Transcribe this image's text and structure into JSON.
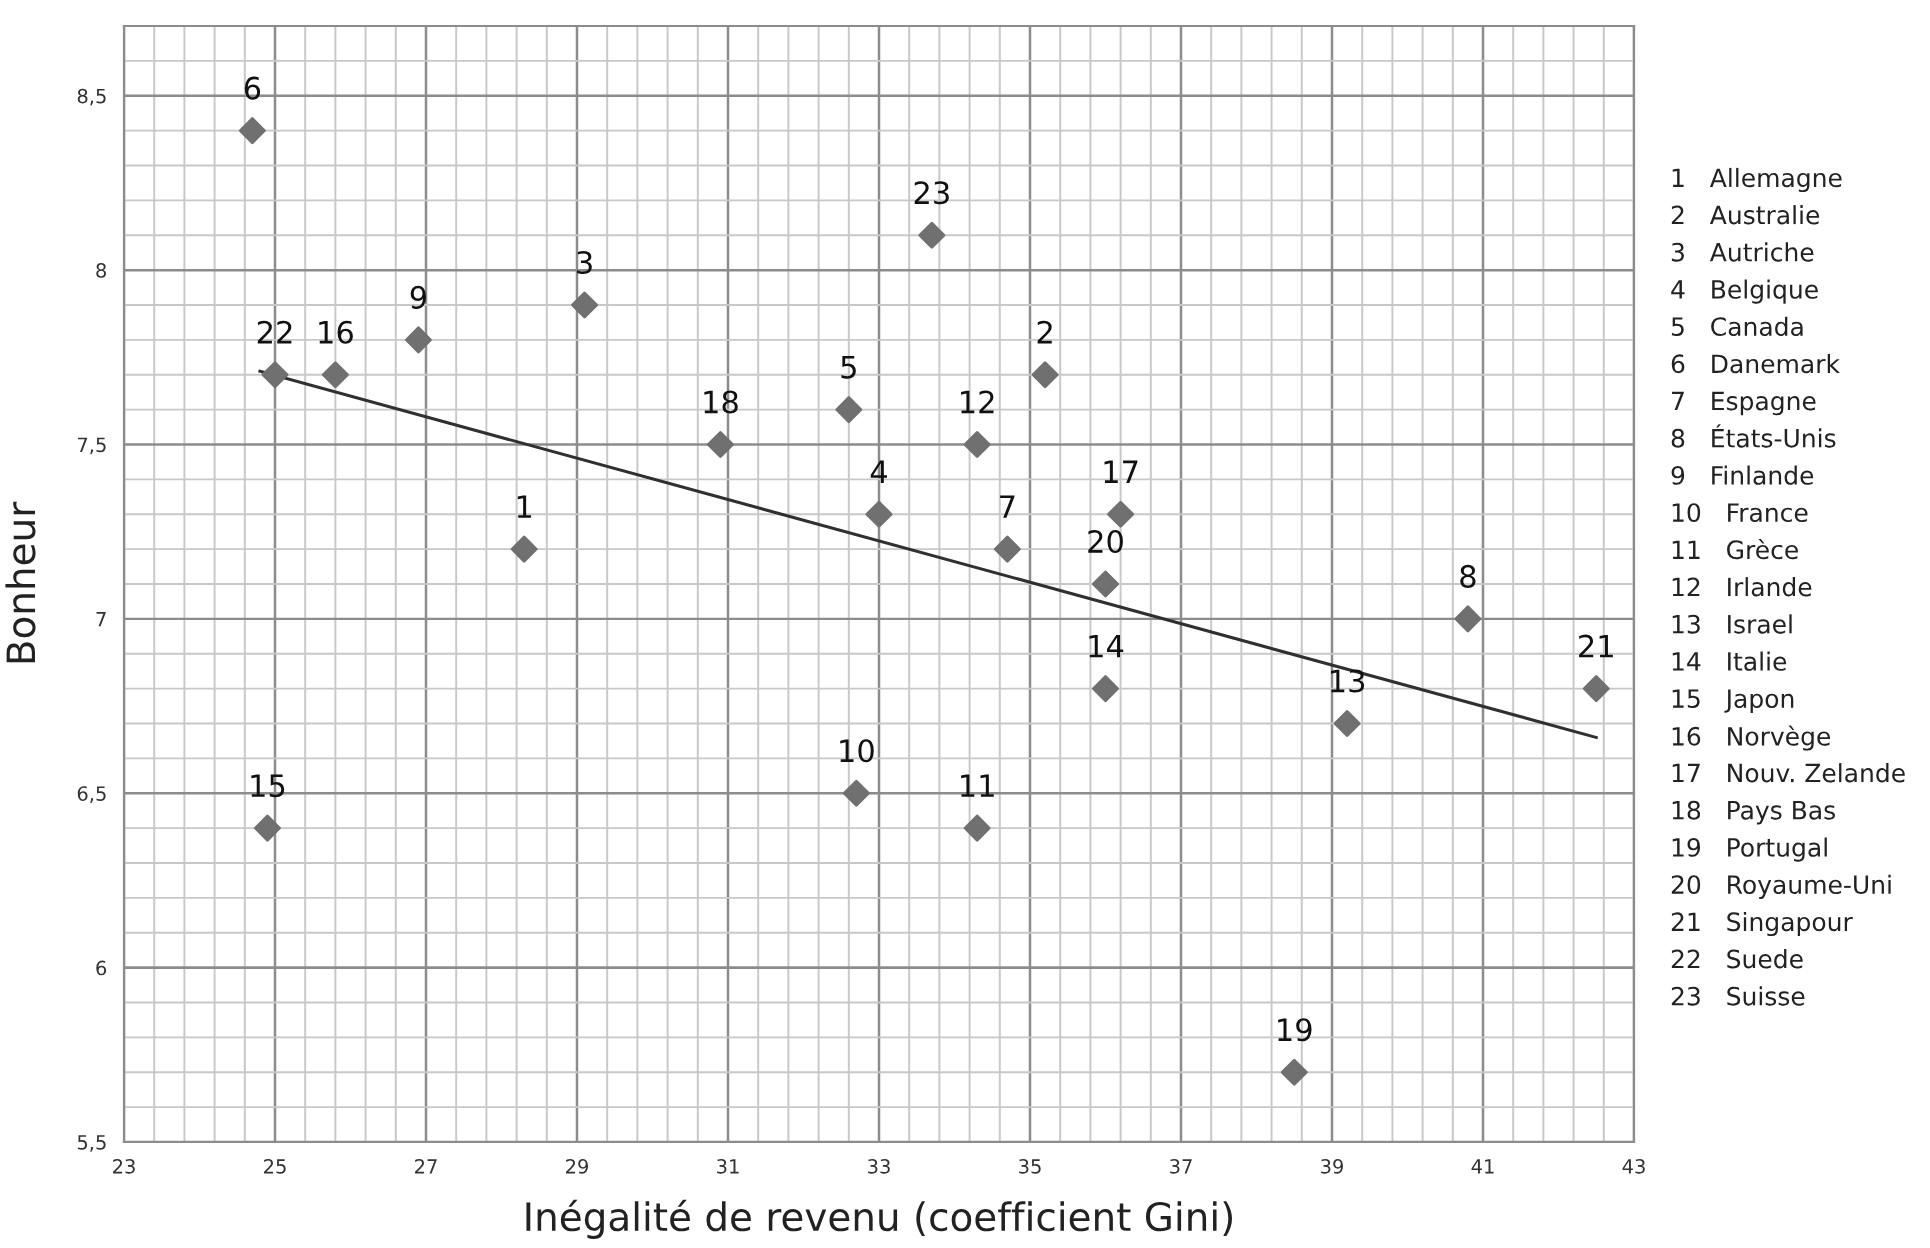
{
  "chart_data": {
    "type": "scatter",
    "xlabel": "Inégalité de revenu (coefficient Gini)",
    "ylabel": "Bonheur",
    "xlim": [
      23,
      43
    ],
    "xticks": [
      23,
      25,
      27,
      29,
      31,
      33,
      35,
      37,
      39,
      41,
      43
    ],
    "ylim": [
      5.5,
      8.7
    ],
    "yticks": [
      {
        "value": 5.5,
        "label": "5,5"
      },
      6,
      {
        "value": 6.5,
        "label": "6,5"
      },
      7,
      {
        "value": 7.5,
        "label": "7,5"
      },
      8,
      {
        "value": 8.5,
        "label": "8,5"
      }
    ],
    "grid": true,
    "series": [
      {
        "marker": "diamond",
        "color": "#707070",
        "x": [
          28.3,
          35.2,
          29.1,
          33.0,
          32.6,
          24.7,
          34.7,
          40.8,
          26.9,
          32.7,
          34.3,
          34.3,
          39.2,
          36.0,
          24.9,
          25.8,
          36.2,
          30.9,
          38.5,
          36.0,
          42.5,
          25.0,
          33.7
        ],
        "values": [
          7.2,
          7.7,
          7.9,
          7.3,
          7.6,
          8.4,
          7.2,
          7.0,
          7.8,
          6.5,
          6.4,
          7.5,
          6.7,
          6.8,
          6.4,
          7.7,
          7.3,
          7.5,
          5.7,
          7.1,
          6.8,
          7.7,
          8.1
        ]
      },
      {
        "type": "line",
        "color": "#303030",
        "x": [
          24.8,
          42.5
        ],
        "values": [
          7.71,
          6.66
        ]
      }
    ],
    "annotations": [
      {
        "text": "1",
        "x": 28.3,
        "y": 7.2
      },
      {
        "text": "2",
        "x": 35.2,
        "y": 7.7
      },
      {
        "text": "3",
        "x": 29.1,
        "y": 7.9
      },
      {
        "text": "4",
        "x": 33.0,
        "y": 7.3
      },
      {
        "text": "5",
        "x": 32.6,
        "y": 7.6
      },
      {
        "text": "6",
        "x": 24.7,
        "y": 8.4
      },
      {
        "text": "7",
        "x": 34.7,
        "y": 7.2
      },
      {
        "text": "8",
        "x": 40.8,
        "y": 7.0
      },
      {
        "text": "9",
        "x": 26.9,
        "y": 7.8
      },
      {
        "text": "10",
        "x": 32.7,
        "y": 6.5
      },
      {
        "text": "11",
        "x": 34.3,
        "y": 6.4
      },
      {
        "text": "12",
        "x": 34.3,
        "y": 7.5
      },
      {
        "text": "13",
        "x": 39.2,
        "y": 6.7
      },
      {
        "text": "14",
        "x": 36.0,
        "y": 6.8
      },
      {
        "text": "15",
        "x": 24.9,
        "y": 6.4
      },
      {
        "text": "16",
        "x": 25.8,
        "y": 7.7
      },
      {
        "text": "17",
        "x": 36.2,
        "y": 7.3
      },
      {
        "text": "18",
        "x": 30.9,
        "y": 7.5
      },
      {
        "text": "19",
        "x": 38.5,
        "y": 5.7
      },
      {
        "text": "20",
        "x": 36.0,
        "y": 7.1
      },
      {
        "text": "21",
        "x": 42.5,
        "y": 6.8
      },
      {
        "text": "22",
        "x": 25.0,
        "y": 7.7
      },
      {
        "text": "23",
        "x": 33.7,
        "y": 8.1
      },
      "1   Allemagne",
      "2   Australie",
      "3   Autriche",
      "4   Belgique",
      "5   Canada",
      "6   Danemark",
      "7   Espagne",
      "8   États-Unis",
      "9   Finlande",
      "10   France",
      "11   Grèce",
      "12   Irlande",
      "13   Israel",
      "14   Italie",
      "15   Japon",
      "16   Norvège",
      "17   Nouv. Zelande",
      "18   Pays Bas",
      "19   Portugal",
      "20   Royaume-Uni",
      "21   Singapour",
      "22   Suede",
      "23   Suisse"
    ]
  }
}
